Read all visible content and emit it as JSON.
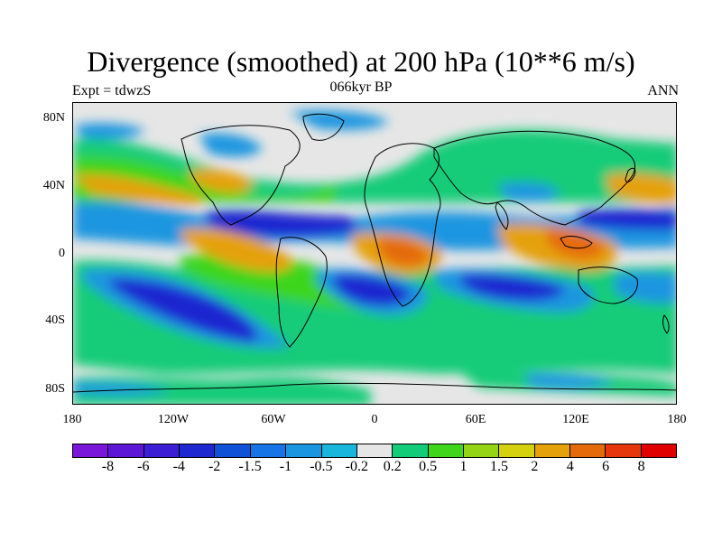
{
  "title": "Divergence (smoothed) at 200 hPa (10**6 m/s)",
  "subtitle_left": "Expt = tdwzS",
  "subtitle_center": "066kyr BP",
  "subtitle_right": "ANN",
  "lat_labels": [
    "80N",
    "40N",
    "0",
    "40S",
    "80S"
  ],
  "lon_labels": [
    "180",
    "120W",
    "60W",
    "0",
    "60E",
    "120E",
    "180"
  ],
  "colorbar": {
    "labels": [
      "-8",
      "-6",
      "-4",
      "-2",
      "-1.5",
      "-1",
      "-0.5",
      "-0.2",
      "0.2",
      "0.5",
      "1",
      "1.5",
      "2",
      "4",
      "6",
      "8"
    ],
    "colors": [
      "#7a16d9",
      "#5c17d6",
      "#3c1ed4",
      "#1e28d0",
      "#0f52d8",
      "#1774e6",
      "#1a96e0",
      "#19b6db",
      "#e6e6e6",
      "#12cc78",
      "#3ed51a",
      "#95d414",
      "#d6d10e",
      "#e5a10a",
      "#e56b0a",
      "#e5360c",
      "#e00000"
    ]
  },
  "map_colors": {
    "ocean_neutral": "#e6e6e6",
    "coast": "#000000"
  }
}
